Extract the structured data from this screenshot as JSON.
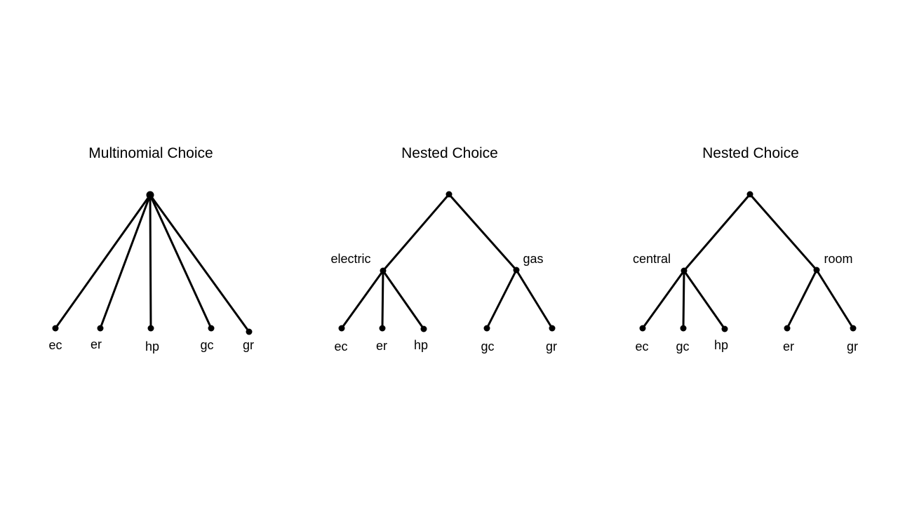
{
  "diagrams": [
    {
      "title": "Multinomial Choice",
      "root": {
        "label": ""
      },
      "leaves": [
        "ec",
        "er",
        "hp",
        "gc",
        "gr"
      ]
    },
    {
      "title": "Nested Choice",
      "root": {
        "label": ""
      },
      "nests": [
        {
          "label": "electric",
          "leaves": [
            "ec",
            "er",
            "hp"
          ]
        },
        {
          "label": "gas",
          "leaves": [
            "gc",
            "gr"
          ]
        }
      ]
    },
    {
      "title": "Nested Choice",
      "root": {
        "label": ""
      },
      "nests": [
        {
          "label": "central",
          "leaves": [
            "ec",
            "gc",
            "hp"
          ]
        },
        {
          "label": "room",
          "leaves": [
            "er",
            "gr"
          ]
        }
      ]
    }
  ]
}
